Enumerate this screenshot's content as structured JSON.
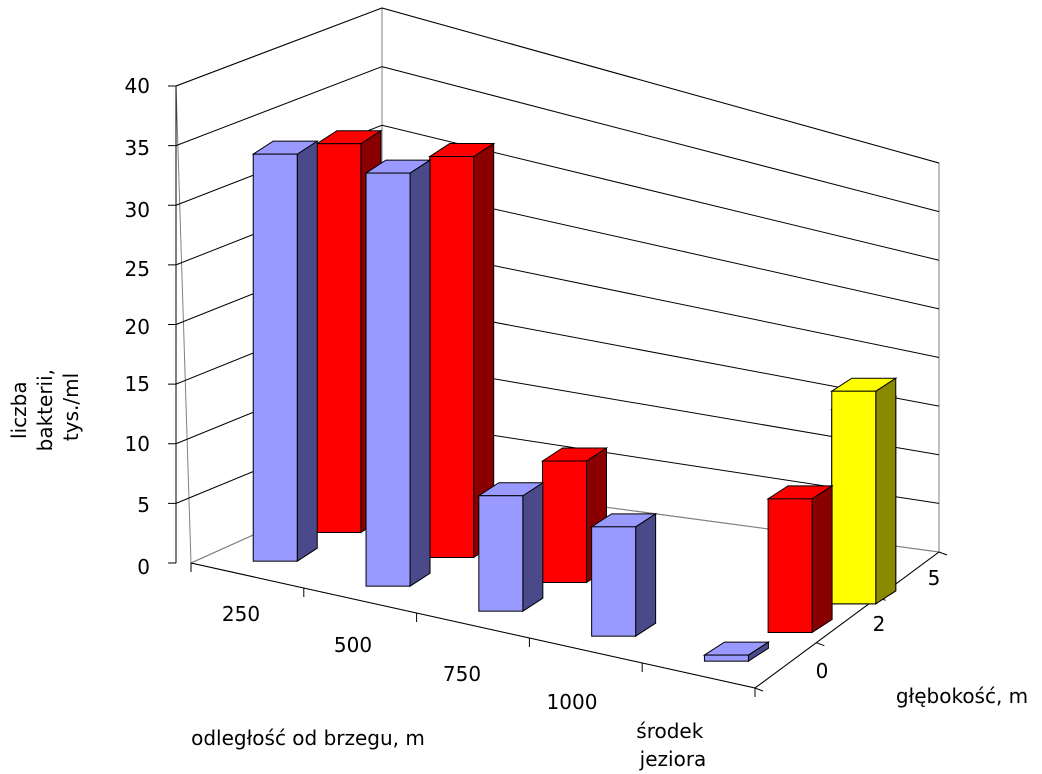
{
  "chart_data": {
    "type": "bar",
    "subtype": "3d-column-grid",
    "categories": [
      "250",
      "500",
      "750",
      "1000",
      "środek jeziora"
    ],
    "depth_categories": [
      "0",
      "2",
      "5"
    ],
    "series": [
      {
        "values": [
          33.5,
          34,
          9.5,
          9,
          0.5
        ],
        "color": "#9999ff"
      },
      {
        "values": [
          32,
          33,
          10,
          null,
          11
        ],
        "color": "#ff0000"
      },
      {
        "values": [
          null,
          null,
          null,
          null,
          16
        ],
        "color": "#ffff00"
      }
    ],
    "extra_bars": [
      {
        "category": "środek jeziora",
        "depth": "5",
        "value": 17.5,
        "color": "#ffff00"
      }
    ],
    "xlabel": "odległość od brzegu, m",
    "ylabel": [
      "liczba",
      "bakterii,",
      "tys./ml"
    ],
    "zlabel": "głębokość, m",
    "ylim": [
      0,
      40
    ],
    "yticks": [
      "0",
      "5",
      "10",
      "15",
      "20",
      "25",
      "30",
      "35",
      "40"
    ],
    "grid": true,
    "legend": "none"
  }
}
